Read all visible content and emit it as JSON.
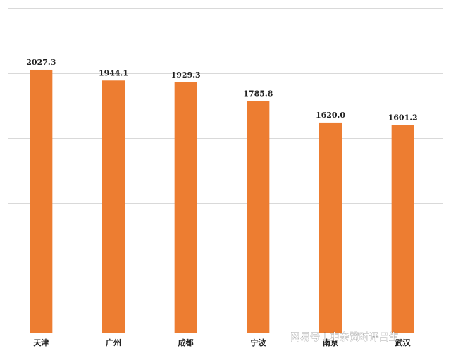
{
  "chart_data": {
    "type": "bar",
    "categories": [
      "天津",
      "广州",
      "成都",
      "宁波",
      "南京",
      "武汉"
    ],
    "values": [
      2027.3,
      1944.1,
      1929.3,
      1785.8,
      1620.0,
      1601.2
    ],
    "value_labels": [
      "2027.3",
      "1944.1",
      "1929.3",
      "1785.8",
      "1620.0",
      "1601.2"
    ],
    "ylim": [
      0,
      2500
    ],
    "grid": true,
    "bar_color": "#ED7D31",
    "grid_color": "#D9D9D9"
  },
  "watermark": "网易号 | 中亲赞时评吕生"
}
